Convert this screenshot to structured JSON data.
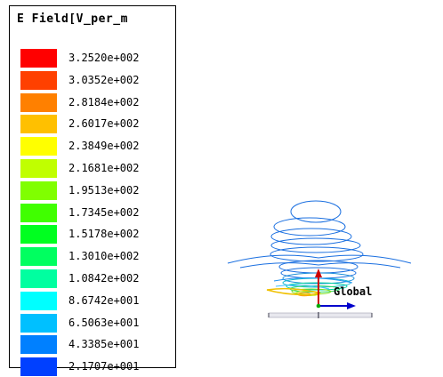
{
  "legend": {
    "title": "E Field[V_per_m",
    "items": [
      {
        "value": "3.2520e+002",
        "color": "#ff0000"
      },
      {
        "value": "3.0352e+002",
        "color": "#ff4000"
      },
      {
        "value": "2.8184e+002",
        "color": "#ff8000"
      },
      {
        "value": "2.6017e+002",
        "color": "#ffc000"
      },
      {
        "value": "2.3849e+002",
        "color": "#ffff00"
      },
      {
        "value": "2.1681e+002",
        "color": "#c0ff00"
      },
      {
        "value": "1.9513e+002",
        "color": "#80ff00"
      },
      {
        "value": "1.7345e+002",
        "color": "#40ff00"
      },
      {
        "value": "1.5178e+002",
        "color": "#00ff20"
      },
      {
        "value": "1.3010e+002",
        "color": "#00ff60"
      },
      {
        "value": "1.0842e+002",
        "color": "#00ffa0"
      },
      {
        "value": "8.6742e+001",
        "color": "#00ffff"
      },
      {
        "value": "6.5063e+001",
        "color": "#00c0ff"
      },
      {
        "value": "4.3385e+001",
        "color": "#0080ff"
      },
      {
        "value": "2.1707e+001",
        "color": "#0040ff"
      }
    ]
  },
  "axes": {
    "label": "Global",
    "z_color": "#cc0000",
    "x_color": "#0000cc"
  },
  "plot": {
    "contour_color": "#1a6fe0"
  }
}
